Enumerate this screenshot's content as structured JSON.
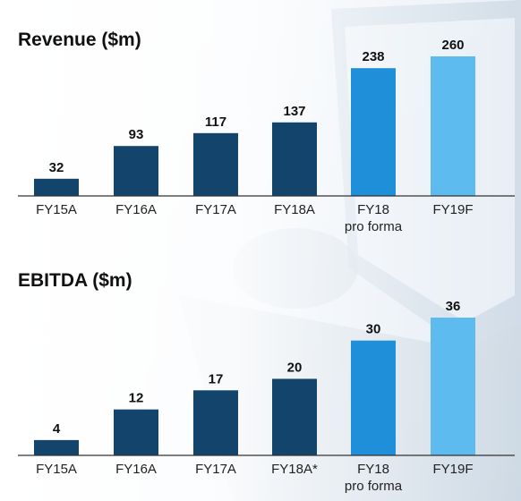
{
  "background": {
    "description_icons": [
      "laptop-photo-background"
    ]
  },
  "colors": {
    "actual": "#13446b",
    "pro_forma": "#1e8fd8",
    "forecast": "#5dbbef",
    "axis": "#333333"
  },
  "chart_data": [
    {
      "type": "bar",
      "title": "Revenue ($m)",
      "xlabel": "",
      "ylabel": "",
      "categories": [
        "FY15A",
        "FY16A",
        "FY17A",
        "FY18A",
        "FY18\npro forma",
        "FY19F"
      ],
      "values": [
        32,
        93,
        117,
        137,
        238,
        260
      ],
      "bar_colors": [
        "actual",
        "actual",
        "actual",
        "actual",
        "pro_forma",
        "forecast"
      ],
      "ylim": [
        0,
        260
      ],
      "grid": false,
      "data_labels": true
    },
    {
      "type": "bar",
      "title": "EBITDA ($m)",
      "xlabel": "",
      "ylabel": "",
      "categories": [
        "FY15A",
        "FY16A",
        "FY17A",
        "FY18A*",
        "FY18\npro forma",
        "FY19F"
      ],
      "values": [
        4,
        12,
        17,
        20,
        30,
        36
      ],
      "bar_colors": [
        "actual",
        "actual",
        "actual",
        "actual",
        "pro_forma",
        "forecast"
      ],
      "ylim": [
        0,
        36
      ],
      "grid": false,
      "data_labels": true
    }
  ]
}
